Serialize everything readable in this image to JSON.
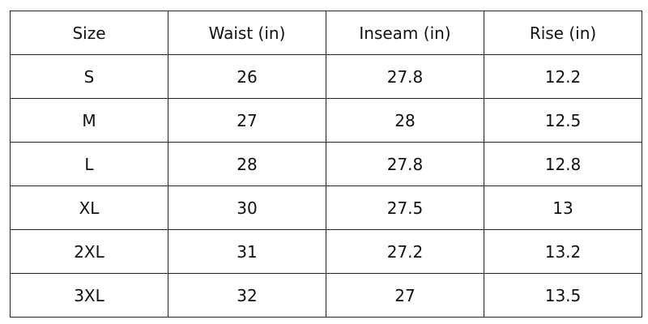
{
  "table": {
    "header": [
      "Size",
      "Waist (in)",
      "Inseam (in)",
      "Rise (in)"
    ],
    "rows": [
      [
        "S",
        26,
        27.8,
        12.2
      ],
      [
        "M",
        27,
        28,
        12.5
      ],
      [
        "L",
        28,
        27.8,
        12.8
      ],
      [
        "XL",
        30,
        27.5,
        13
      ],
      [
        "2XL",
        31,
        27.2,
        13.2
      ],
      [
        "3XL",
        32,
        27,
        13.5
      ]
    ]
  }
}
